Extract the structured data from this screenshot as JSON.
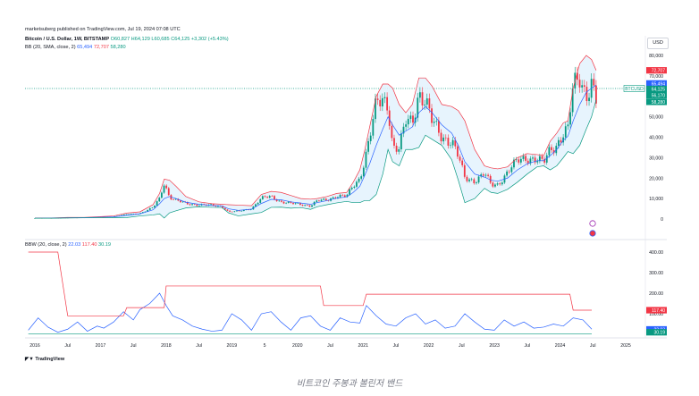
{
  "header": {
    "publisher": "marketsuberg published on TradingView.com, Jul 19, 2024 07:08 UTC",
    "symbol": "Bitcoin / U.S. Dollar, 1W, BITSTAMP",
    "o": "O60,827",
    "h": "H64,129",
    "l": "L60,685",
    "c": "C64,125",
    "change": "+3,302 (+5.43%)",
    "bb_label": "BB (20, SMA, close, 2)",
    "bb_mid": "65,494",
    "bb_upper": "72,707",
    "bb_lower": "58,280",
    "bbw_label": "BBW (20, close, 2)",
    "bbw_v1": "22.03",
    "bbw_v2": "117.40",
    "bbw_v3": "30.19",
    "currency_button": "USD",
    "footer_logo": "TradingView"
  },
  "caption": "비트코인 주봉과 볼린저 밴드",
  "colors": {
    "up": "#089981",
    "down": "#f23645",
    "bb_mid": "#2962ff",
    "bb_upper": "#f23645",
    "bb_lower": "#089981",
    "band_fill": "#e3f2fd",
    "bbw_line": "#2962ff",
    "bbw_high": "#f23645",
    "bbw_low": "#089981"
  },
  "chart_data": [
    {
      "type": "candlestick",
      "title": "Bitcoin / U.S. Dollar, 1W, BITSTAMP",
      "x_ticks": [
        "2016",
        "Jul",
        "2017",
        "Jul",
        "2018",
        "Jul",
        "2019",
        "5",
        "2020",
        "Jul",
        "2021",
        "Jul",
        "2022",
        "Jul",
        "2023",
        "Jul",
        "2024",
        "Jul",
        "2025"
      ],
      "y_ticks": [
        "80,000",
        "70,000",
        "60,000",
        "50,000",
        "40,000",
        "30,000",
        "20,000",
        "10,000",
        "0"
      ],
      "ylim": [
        -5000,
        82000
      ],
      "price_labels": {
        "upper": "72,707",
        "price_a": "65,494",
        "price_b": "64,125",
        "price_c": "56,170",
        "lower": "58,280",
        "symbol": "BTCUSD"
      },
      "x": [
        2016.0,
        2016.25,
        2016.5,
        2016.75,
        2017.0,
        2017.2,
        2017.4,
        2017.6,
        2017.8,
        2017.9,
        2017.97,
        2018.05,
        2018.15,
        2018.3,
        2018.5,
        2018.7,
        2018.85,
        2018.95,
        2019.1,
        2019.3,
        2019.45,
        2019.6,
        2019.75,
        2019.9,
        2020.05,
        2020.2,
        2020.3,
        2020.45,
        2020.6,
        2020.75,
        2020.85,
        2020.95,
        2021.02,
        2021.1,
        2021.2,
        2021.3,
        2021.38,
        2021.45,
        2021.55,
        2021.65,
        2021.75,
        2021.85,
        2021.95,
        2022.05,
        2022.2,
        2022.35,
        2022.45,
        2022.55,
        2022.7,
        2022.85,
        2022.95,
        2023.05,
        2023.2,
        2023.35,
        2023.5,
        2023.65,
        2023.75,
        2023.85,
        2023.95,
        2024.05,
        2024.12,
        2024.2,
        2024.3,
        2024.4,
        2024.48,
        2024.55
      ],
      "close": [
        430,
        450,
        650,
        700,
        1000,
        1200,
        2200,
        2800,
        5500,
        10000,
        18000,
        11000,
        9000,
        7500,
        7000,
        6500,
        6300,
        3500,
        3700,
        5200,
        10000,
        11000,
        8500,
        7500,
        7200,
        6500,
        8800,
        9200,
        11500,
        11000,
        16000,
        20000,
        29000,
        40000,
        55000,
        58000,
        57000,
        36000,
        34000,
        47000,
        48000,
        63000,
        57000,
        47000,
        41000,
        38000,
        30000,
        20000,
        19000,
        22000,
        16500,
        17000,
        23000,
        28000,
        30500,
        29000,
        27000,
        34000,
        37000,
        42000,
        43000,
        64000,
        70000,
        62000,
        66000,
        57000
      ],
      "bb_mid": [
        420,
        440,
        620,
        680,
        900,
        1050,
        1800,
        2500,
        4500,
        7500,
        10000,
        11000,
        10000,
        8200,
        7200,
        6600,
        6400,
        5000,
        4200,
        4800,
        7600,
        9600,
        9400,
        8400,
        7800,
        7200,
        8000,
        9000,
        10200,
        10800,
        13000,
        16000,
        21000,
        27000,
        36000,
        44000,
        50000,
        46000,
        41000,
        43000,
        45000,
        52000,
        55000,
        52000,
        46000,
        42000,
        36000,
        28000,
        22000,
        20500,
        19000,
        18500,
        20000,
        24000,
        27000,
        28500,
        28500,
        31000,
        34000,
        38500,
        40500,
        48000,
        56000,
        62000,
        64000,
        65494
      ],
      "bb_upper": [
        480,
        500,
        760,
        780,
        1150,
        1500,
        2900,
        3500,
        7000,
        12500,
        19500,
        19000,
        16000,
        11000,
        8400,
        7500,
        7200,
        7000,
        6800,
        6500,
        12000,
        13500,
        13000,
        11500,
        10000,
        9700,
        10000,
        11000,
        12500,
        13000,
        18000,
        24000,
        33000,
        45000,
        60000,
        66000,
        66000,
        64000,
        56000,
        52000,
        56000,
        69000,
        69000,
        65000,
        56000,
        55000,
        53000,
        48000,
        34000,
        26000,
        25000,
        24500,
        25500,
        30000,
        32000,
        31500,
        31000,
        38000,
        42000,
        47000,
        48000,
        64000,
        76000,
        80000,
        78000,
        72707
      ],
      "bb_lower": [
        380,
        390,
        480,
        580,
        650,
        600,
        700,
        1500,
        2000,
        2500,
        500,
        3000,
        4000,
        5400,
        6000,
        5700,
        5600,
        3000,
        1500,
        2500,
        3200,
        5700,
        5800,
        5300,
        5600,
        4700,
        6000,
        7000,
        7900,
        8600,
        8000,
        8000,
        9000,
        9000,
        12000,
        22000,
        34000,
        28000,
        26000,
        34000,
        34000,
        35000,
        41000,
        39000,
        36000,
        29000,
        19000,
        8000,
        10000,
        15000,
        13000,
        12500,
        14500,
        18000,
        22000,
        25500,
        26000,
        24000,
        26000,
        30000,
        33000,
        32000,
        36000,
        44000,
        50000,
        58280
      ]
    },
    {
      "type": "line",
      "title": "BBW (20, close, 2)",
      "y_ticks": [
        "400.00",
        "300.00",
        "200.00",
        "100.00"
      ],
      "ylim": [
        0,
        420
      ],
      "series": [
        {
          "name": "BBW",
          "x": [
            2015.9,
            2016.05,
            2016.2,
            2016.35,
            2016.5,
            2016.65,
            2016.8,
            2016.95,
            2017.05,
            2017.2,
            2017.35,
            2017.5,
            2017.6,
            2017.75,
            2017.9,
            2018.0,
            2018.1,
            2018.25,
            2018.4,
            2018.55,
            2018.7,
            2018.85,
            2019.0,
            2019.15,
            2019.3,
            2019.45,
            2019.6,
            2019.75,
            2019.9,
            2020.05,
            2020.2,
            2020.35,
            2020.5,
            2020.65,
            2020.8,
            2020.95,
            2021.05,
            2021.2,
            2021.35,
            2021.5,
            2021.65,
            2021.8,
            2021.95,
            2022.1,
            2022.25,
            2022.4,
            2022.55,
            2022.7,
            2022.85,
            2023.0,
            2023.15,
            2023.3,
            2023.45,
            2023.6,
            2023.75,
            2023.9,
            2024.05,
            2024.2,
            2024.35,
            2024.5
          ],
          "y": [
            20,
            80,
            35,
            10,
            25,
            60,
            15,
            40,
            30,
            60,
            110,
            70,
            120,
            150,
            200,
            140,
            90,
            70,
            40,
            25,
            15,
            20,
            100,
            70,
            20,
            100,
            110,
            60,
            20,
            80,
            90,
            40,
            20,
            80,
            60,
            55,
            140,
            90,
            50,
            40,
            80,
            100,
            50,
            70,
            30,
            40,
            100,
            60,
            25,
            20,
            70,
            40,
            60,
            30,
            35,
            50,
            40,
            80,
            70,
            25
          ]
        },
        {
          "name": "BBW high",
          "x": [
            2015.9,
            2016.35,
            2016.5,
            2017.35,
            2017.4,
            2017.97,
            2018.0,
            2020.35,
            2020.4,
            2021.0,
            2021.05,
            2024.15,
            2024.2,
            2024.55
          ],
          "y": [
            400,
            400,
            90,
            90,
            130,
            130,
            235,
            235,
            140,
            140,
            195,
            195,
            117.4,
            117.4
          ]
        },
        {
          "name": "BBW low",
          "x": [
            2015.9,
            2024.55
          ],
          "y": [
            3,
            3
          ]
        }
      ],
      "value_labels": [
        "117.40",
        "22.03",
        "30.19"
      ]
    }
  ]
}
